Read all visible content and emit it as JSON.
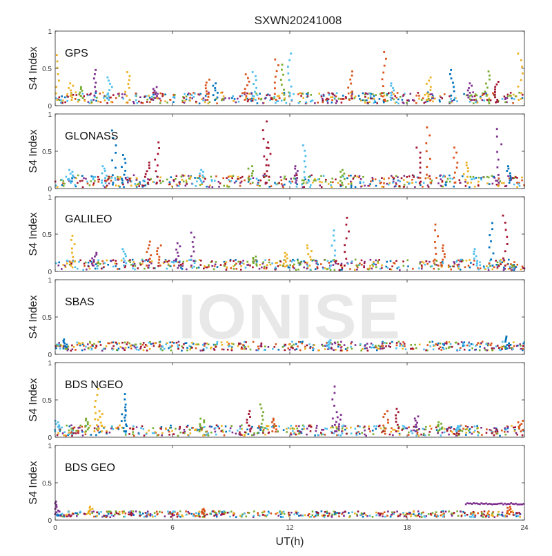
{
  "chart_data": {
    "type": "scatter",
    "title": "SXWN20241008",
    "watermark": "IONISE",
    "xlabel": "UT(h)",
    "ylabel": "S4 Index",
    "xlim": [
      0,
      24
    ],
    "ylim": [
      0,
      1
    ],
    "x_ticks": [
      "0",
      "6",
      "12",
      "18",
      "24"
    ],
    "y_ticks": [
      "0",
      "0.5",
      "1"
    ],
    "grid": false,
    "series_colors": [
      "#0072BD",
      "#D95319",
      "#EDB120",
      "#7E2F8E",
      "#77AC30",
      "#4DBEEE",
      "#A2142F"
    ],
    "panels": [
      {
        "label": "GPS",
        "baseline": {
          "min": 0.03,
          "max": 0.18
        },
        "spikes": [
          {
            "x": 0.1,
            "y": 0.68,
            "c": 2
          },
          {
            "x": 0.8,
            "y": 0.3,
            "c": 2
          },
          {
            "x": 1.3,
            "y": 0.25,
            "c": 4
          },
          {
            "x": 2.0,
            "y": 0.48,
            "c": 3
          },
          {
            "x": 2.8,
            "y": 0.38,
            "c": 5
          },
          {
            "x": 3.7,
            "y": 0.45,
            "c": 2
          },
          {
            "x": 5.1,
            "y": 0.25,
            "c": 3
          },
          {
            "x": 7.8,
            "y": 0.35,
            "c": 1
          },
          {
            "x": 8.2,
            "y": 0.3,
            "c": 0
          },
          {
            "x": 9.8,
            "y": 0.42,
            "c": 1
          },
          {
            "x": 10.2,
            "y": 0.45,
            "c": 5
          },
          {
            "x": 11.3,
            "y": 0.62,
            "c": 1
          },
          {
            "x": 11.6,
            "y": 0.55,
            "c": 4
          },
          {
            "x": 12.0,
            "y": 0.7,
            "c": 5
          },
          {
            "x": 15.1,
            "y": 0.46,
            "c": 1
          },
          {
            "x": 16.8,
            "y": 0.72,
            "c": 1
          },
          {
            "x": 17.2,
            "y": 0.3,
            "c": 5
          },
          {
            "x": 19.1,
            "y": 0.38,
            "c": 2
          },
          {
            "x": 20.3,
            "y": 0.48,
            "c": 0
          },
          {
            "x": 21.2,
            "y": 0.3,
            "c": 3
          },
          {
            "x": 22.1,
            "y": 0.46,
            "c": 4
          },
          {
            "x": 22.6,
            "y": 0.32,
            "c": 6
          },
          {
            "x": 23.8,
            "y": 0.7,
            "c": 2
          }
        ]
      },
      {
        "label": "GLONASS",
        "baseline": {
          "min": 0.02,
          "max": 0.18
        },
        "spikes": [
          {
            "x": 0.8,
            "y": 0.25,
            "c": 5
          },
          {
            "x": 2.5,
            "y": 0.3,
            "c": 5
          },
          {
            "x": 3.0,
            "y": 0.78,
            "c": 0
          },
          {
            "x": 3.5,
            "y": 0.45,
            "c": 0
          },
          {
            "x": 4.7,
            "y": 0.35,
            "c": 6
          },
          {
            "x": 5.2,
            "y": 0.62,
            "c": 6
          },
          {
            "x": 7.5,
            "y": 0.25,
            "c": 5
          },
          {
            "x": 10.0,
            "y": 0.3,
            "c": 4
          },
          {
            "x": 10.7,
            "y": 0.9,
            "c": 6
          },
          {
            "x": 10.9,
            "y": 0.62,
            "c": 6
          },
          {
            "x": 12.3,
            "y": 0.3,
            "c": 3
          },
          {
            "x": 12.8,
            "y": 0.58,
            "c": 5
          },
          {
            "x": 14.7,
            "y": 0.25,
            "c": 4
          },
          {
            "x": 18.6,
            "y": 0.55,
            "c": 6
          },
          {
            "x": 19.1,
            "y": 0.82,
            "c": 1
          },
          {
            "x": 20.5,
            "y": 0.55,
            "c": 1
          },
          {
            "x": 21.0,
            "y": 0.35,
            "c": 2
          },
          {
            "x": 22.7,
            "y": 0.8,
            "c": 3
          },
          {
            "x": 23.2,
            "y": 0.3,
            "c": 0
          }
        ]
      },
      {
        "label": "GALILEO",
        "baseline": {
          "min": 0.02,
          "max": 0.16
        },
        "spikes": [
          {
            "x": 0.9,
            "y": 0.48,
            "c": 2
          },
          {
            "x": 2.0,
            "y": 0.25,
            "c": 3
          },
          {
            "x": 3.5,
            "y": 0.3,
            "c": 5
          },
          {
            "x": 4.8,
            "y": 0.4,
            "c": 1
          },
          {
            "x": 5.3,
            "y": 0.35,
            "c": 1
          },
          {
            "x": 6.3,
            "y": 0.38,
            "c": 3
          },
          {
            "x": 7.0,
            "y": 0.52,
            "c": 3
          },
          {
            "x": 10.2,
            "y": 0.2,
            "c": 4
          },
          {
            "x": 11.8,
            "y": 0.25,
            "c": 2
          },
          {
            "x": 13.0,
            "y": 0.35,
            "c": 2
          },
          {
            "x": 14.2,
            "y": 0.55,
            "c": 5
          },
          {
            "x": 14.9,
            "y": 0.72,
            "c": 6
          },
          {
            "x": 19.5,
            "y": 0.63,
            "c": 1
          },
          {
            "x": 19.8,
            "y": 0.35,
            "c": 1
          },
          {
            "x": 21.5,
            "y": 0.3,
            "c": 5
          },
          {
            "x": 22.3,
            "y": 0.65,
            "c": 0
          },
          {
            "x": 23.0,
            "y": 0.75,
            "c": 6
          }
        ]
      },
      {
        "label": "SBAS",
        "baseline": {
          "min": 0.05,
          "max": 0.17
        },
        "spikes": [
          {
            "x": 0.5,
            "y": 0.2,
            "c": 0
          },
          {
            "x": 14.0,
            "y": 0.19,
            "c": 5
          },
          {
            "x": 23.1,
            "y": 0.24,
            "c": 0
          }
        ]
      },
      {
        "label": "BDS NGEO",
        "baseline": {
          "min": 0.02,
          "max": 0.16
        },
        "spikes": [
          {
            "x": 0.1,
            "y": 0.22,
            "c": 5
          },
          {
            "x": 1.6,
            "y": 0.25,
            "c": 4
          },
          {
            "x": 2.1,
            "y": 0.65,
            "c": 2
          },
          {
            "x": 2.3,
            "y": 0.35,
            "c": 2
          },
          {
            "x": 3.6,
            "y": 0.58,
            "c": 0
          },
          {
            "x": 3.5,
            "y": 0.4,
            "c": 0
          },
          {
            "x": 7.5,
            "y": 0.25,
            "c": 4
          },
          {
            "x": 9.9,
            "y": 0.35,
            "c": 6
          },
          {
            "x": 10.6,
            "y": 0.44,
            "c": 4
          },
          {
            "x": 11.2,
            "y": 0.25,
            "c": 1
          },
          {
            "x": 14.3,
            "y": 0.68,
            "c": 3
          },
          {
            "x": 14.5,
            "y": 0.3,
            "c": 3
          },
          {
            "x": 16.9,
            "y": 0.35,
            "c": 1
          },
          {
            "x": 17.5,
            "y": 0.38,
            "c": 6
          },
          {
            "x": 18.5,
            "y": 0.28,
            "c": 3
          },
          {
            "x": 19.7,
            "y": 0.2,
            "c": 4
          },
          {
            "x": 20.6,
            "y": 0.15,
            "c": 5
          },
          {
            "x": 23.8,
            "y": 0.22,
            "c": 1
          }
        ]
      },
      {
        "label": "BDS GEO",
        "baseline": {
          "min": 0.04,
          "max": 0.12
        },
        "spikes": [
          {
            "x": 0.1,
            "y": 0.25,
            "c": 3
          },
          {
            "x": 1.8,
            "y": 0.18,
            "c": 2
          },
          {
            "x": 7.6,
            "y": 0.15,
            "c": 1
          },
          {
            "x": 23.2,
            "y": 0.18,
            "c": 1
          }
        ],
        "track": {
          "x_start": 21.0,
          "x_end": 24.0,
          "y": 0.22,
          "c": 3
        }
      }
    ]
  }
}
